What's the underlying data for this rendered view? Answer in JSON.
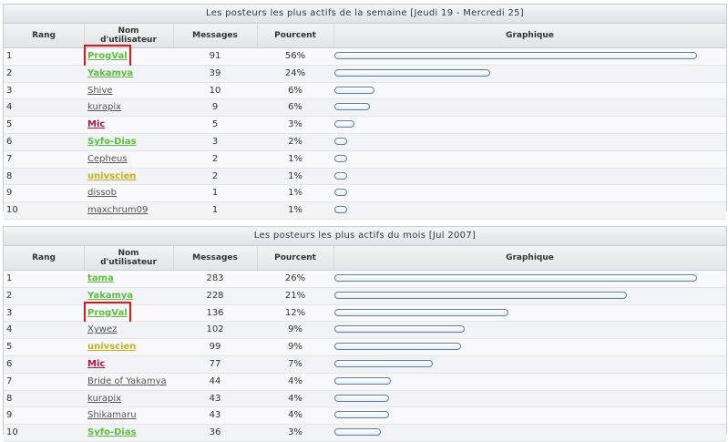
{
  "colors": {
    "default": "#555555",
    "green": "#5bbf3d",
    "red": "#b5173b",
    "yellow": "#c2b21c",
    "highlight": "#e0151b"
  },
  "headers": {
    "rang": "Rang",
    "nom_line1": "Nom",
    "nom_line2": "d'utilisateur",
    "messages": "Messages",
    "pourcent": "Pourcent",
    "graphique": "Graphique"
  },
  "week": {
    "title": "Les posteurs les plus actifs de la semaine [Jeudi 19 - Mercredi 25]",
    "rows": [
      {
        "rank": "1",
        "name": "ProgVal",
        "color": "green",
        "messages": "91",
        "pct": "56%",
        "highlight": true
      },
      {
        "rank": "2",
        "name": "Yakamya",
        "color": "green",
        "messages": "39",
        "pct": "24%"
      },
      {
        "rank": "3",
        "name": "Shive",
        "color": "default",
        "messages": "10",
        "pct": "6%"
      },
      {
        "rank": "4",
        "name": "kurapix",
        "color": "default",
        "messages": "9",
        "pct": "6%"
      },
      {
        "rank": "5",
        "name": "Mic",
        "color": "red",
        "messages": "5",
        "pct": "3%"
      },
      {
        "rank": "6",
        "name": "Syfo-Dias",
        "color": "green",
        "messages": "3",
        "pct": "2%"
      },
      {
        "rank": "7",
        "name": "Cepheus",
        "color": "default",
        "messages": "2",
        "pct": "1%"
      },
      {
        "rank": "8",
        "name": "univscien",
        "color": "yellow",
        "messages": "2",
        "pct": "1%"
      },
      {
        "rank": "9",
        "name": "dissob",
        "color": "default",
        "messages": "1",
        "pct": "1%"
      },
      {
        "rank": "10",
        "name": "maxchrum09",
        "color": "default",
        "messages": "1",
        "pct": "1%"
      }
    ]
  },
  "month": {
    "title": "Les posteurs les plus actifs du mois [Jul 2007]",
    "rows": [
      {
        "rank": "1",
        "name": "tama",
        "color": "green",
        "messages": "283",
        "pct": "26%"
      },
      {
        "rank": "2",
        "name": "Yakamya",
        "color": "green",
        "messages": "228",
        "pct": "21%"
      },
      {
        "rank": "3",
        "name": "ProgVal",
        "color": "green",
        "messages": "136",
        "pct": "12%",
        "highlight": true
      },
      {
        "rank": "4",
        "name": "Xywez",
        "color": "default",
        "messages": "102",
        "pct": "9%"
      },
      {
        "rank": "5",
        "name": "univscien",
        "color": "yellow",
        "messages": "99",
        "pct": "9%"
      },
      {
        "rank": "6",
        "name": "Mic",
        "color": "red",
        "messages": "77",
        "pct": "7%"
      },
      {
        "rank": "7",
        "name": "Bride of Yakamya",
        "color": "default",
        "messages": "44",
        "pct": "4%"
      },
      {
        "rank": "8",
        "name": "kurapix",
        "color": "default",
        "messages": "43",
        "pct": "4%"
      },
      {
        "rank": "9",
        "name": "Shikamaru",
        "color": "default",
        "messages": "43",
        "pct": "4%"
      },
      {
        "rank": "10",
        "name": "Syfo-Dias",
        "color": "green",
        "messages": "36",
        "pct": "3%"
      }
    ]
  }
}
